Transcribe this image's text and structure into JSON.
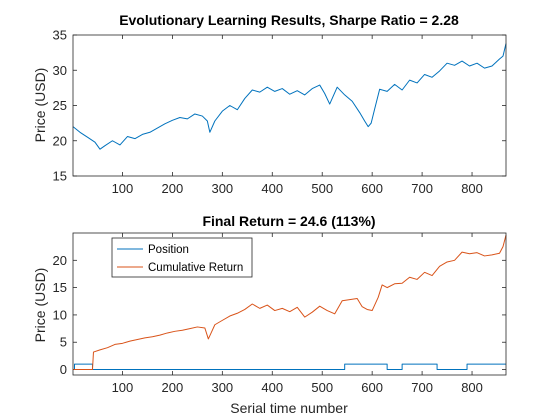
{
  "chart_data": [
    {
      "type": "line",
      "title": "Evolutionary Learning Results, Sharpe Ratio = 2.28",
      "xlabel": "",
      "ylabel": "Price (USD)",
      "xlim": [
        1,
        868
      ],
      "ylim": [
        15,
        35
      ],
      "xticks": [
        100,
        200,
        300,
        400,
        500,
        600,
        700,
        800
      ],
      "yticks": [
        15,
        20,
        25,
        30,
        35
      ],
      "grid": false,
      "series": [
        {
          "color": "#0072BD",
          "x": [
            1,
            15,
            30,
            45,
            55,
            65,
            80,
            95,
            110,
            125,
            140,
            155,
            170,
            185,
            200,
            215,
            230,
            245,
            260,
            270,
            275,
            285,
            300,
            315,
            330,
            345,
            360,
            375,
            390,
            405,
            420,
            435,
            450,
            465,
            480,
            495,
            505,
            515,
            530,
            545,
            560,
            575,
            585,
            592,
            598,
            605,
            615,
            630,
            645,
            660,
            675,
            690,
            705,
            720,
            735,
            750,
            765,
            780,
            795,
            810,
            825,
            840,
            855,
            862,
            868
          ],
          "values": [
            22.0,
            21.2,
            20.5,
            19.8,
            18.8,
            19.3,
            20.0,
            19.4,
            20.6,
            20.3,
            20.9,
            21.2,
            21.8,
            22.4,
            22.9,
            23.3,
            23.1,
            23.8,
            23.5,
            22.8,
            21.2,
            22.8,
            24.2,
            25.0,
            24.4,
            26.0,
            27.2,
            26.9,
            27.6,
            27.0,
            27.4,
            26.6,
            27.1,
            26.5,
            27.4,
            27.9,
            26.7,
            25.2,
            27.6,
            26.5,
            25.6,
            24.0,
            22.8,
            22.0,
            22.5,
            24.5,
            27.3,
            27.0,
            28.0,
            27.2,
            28.6,
            28.2,
            29.4,
            29.0,
            29.9,
            31.0,
            30.7,
            31.3,
            30.6,
            31.0,
            30.3,
            30.6,
            31.6,
            32.0,
            33.8
          ]
        }
      ]
    },
    {
      "type": "line",
      "title": "Final Return = 24.6 (113%)",
      "xlabel": "Serial time number",
      "ylabel": "Price (USD)",
      "xlim": [
        1,
        868
      ],
      "ylim": [
        -1,
        25
      ],
      "xticks": [
        100,
        200,
        300,
        400,
        500,
        600,
        700,
        800
      ],
      "yticks": [
        0,
        5,
        10,
        15,
        20
      ],
      "grid": false,
      "legend_position": "top-left",
      "series": [
        {
          "name": "Position",
          "color": "#0072BD",
          "step": true,
          "x": [
            1,
            4,
            38,
            40,
            540,
            545,
            560,
            570,
            600,
            605,
            625,
            630,
            655,
            660,
            690,
            695,
            700,
            705,
            725,
            730,
            785,
            790,
            868
          ],
          "values": [
            0,
            1,
            1,
            0,
            0,
            1,
            1,
            1,
            1,
            1,
            1,
            0,
            0,
            1,
            1,
            1,
            1,
            1,
            1,
            0,
            0,
            1,
            1
          ]
        },
        {
          "name": "Cumulative Return",
          "color": "#D95319",
          "x": [
            1,
            15,
            30,
            40,
            42,
            55,
            70,
            85,
            100,
            115,
            130,
            145,
            160,
            175,
            190,
            205,
            220,
            235,
            250,
            265,
            272,
            278,
            285,
            300,
            315,
            330,
            345,
            360,
            375,
            390,
            405,
            420,
            435,
            450,
            465,
            480,
            495,
            510,
            525,
            540,
            555,
            570,
            580,
            590,
            600,
            612,
            620,
            630,
            645,
            660,
            675,
            690,
            705,
            720,
            735,
            750,
            765,
            780,
            795,
            810,
            825,
            840,
            855,
            862,
            868
          ],
          "values": [
            0,
            0,
            0,
            0,
            3.2,
            3.6,
            4.0,
            4.6,
            4.8,
            5.2,
            5.5,
            5.8,
            6.0,
            6.3,
            6.7,
            7.0,
            7.2,
            7.5,
            7.8,
            7.6,
            5.6,
            6.8,
            8.2,
            9.0,
            9.8,
            10.3,
            11.0,
            12.0,
            11.2,
            11.8,
            10.8,
            11.2,
            10.6,
            11.4,
            9.6,
            10.5,
            11.6,
            10.8,
            10.2,
            12.6,
            12.8,
            13.0,
            11.5,
            11.0,
            10.8,
            13.2,
            15.5,
            15.0,
            15.7,
            15.8,
            16.9,
            16.5,
            17.8,
            17.2,
            18.9,
            19.7,
            20.0,
            21.5,
            21.2,
            21.4,
            20.8,
            21.0,
            21.3,
            22.5,
            24.6
          ]
        }
      ]
    }
  ]
}
